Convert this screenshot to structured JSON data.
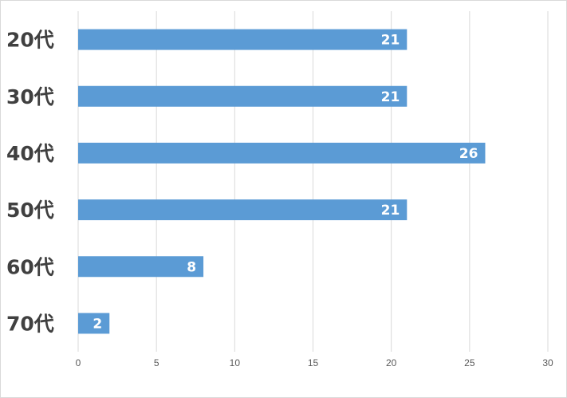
{
  "chart_data": {
    "type": "bar",
    "orientation": "horizontal",
    "title": "",
    "xlabel": "",
    "ylabel": "",
    "categories": [
      "20代",
      "30代",
      "40代",
      "50代",
      "60代",
      "70代"
    ],
    "values": [
      21,
      21,
      26,
      21,
      8,
      2
    ],
    "xlim": [
      0,
      30
    ],
    "x_ticks": [
      "0",
      "5",
      "10",
      "15",
      "20",
      "25",
      "30"
    ],
    "data_labels": [
      "21",
      "21",
      "26",
      "21",
      "8",
      "2"
    ],
    "grid": "vertical",
    "legend": "none",
    "colors": {
      "bar": "#5b9bd5",
      "grid": "#d9d9d9",
      "label_text": "#404040",
      "tick_text": "#595959"
    }
  }
}
